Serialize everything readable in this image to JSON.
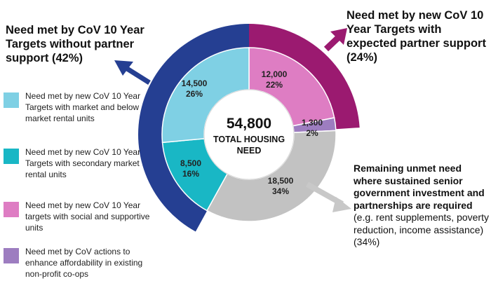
{
  "colors": {
    "outer_blue": "#253f92",
    "outer_magenta": "#9b1a70",
    "light_blue": "#7fd0e4",
    "teal": "#19b7c5",
    "pink": "#de7dc3",
    "purple": "#9d7dc0",
    "gray": "#c2c2c2",
    "gray_arrow": "#c8c8c8"
  },
  "callouts": {
    "left": "Need met by CoV 10 Year Targets without partner support (42%)",
    "top_right": "Need met by new CoV 10 Year Targets with expected partner support (24%)",
    "bottom_right_bold": "Remaining unmet need where sustained senior government investment and partnerships are required",
    "bottom_right_normal": " (e.g. rent supplements, poverty reduction, income assistance) (34%)"
  },
  "legend": [
    {
      "label": "Need met by new CoV 10 Year Targets with market and below market rental units",
      "color": "#7fd0e4"
    },
    {
      "label": "Need met by new CoV 10 Year Targets with secondary market rental units",
      "color": "#19b7c5"
    },
    {
      "label": "Need met by new CoV 10 Year targets with social and supportive units",
      "color": "#de7dc3"
    },
    {
      "label": "Need met by CoV actions to enhance affordability in existing non-profit co-ops",
      "color": "#9d7dc0"
    }
  ],
  "chart_data": {
    "type": "pie",
    "center_total": "54,800",
    "center_label_line1": "TOTAL HOUSING",
    "center_label_line2": "NEED",
    "inner_ring": [
      {
        "value": 12000,
        "value_label": "12,000",
        "percent_label": "22%",
        "color": "#de7dc3"
      },
      {
        "value": 1300,
        "value_label": "1,300",
        "percent_label": "2%",
        "color": "#9d7dc0"
      },
      {
        "value": 18500,
        "value_label": "18,500",
        "percent_label": "34%",
        "color": "#c2c2c2"
      },
      {
        "value": 8500,
        "value_label": "8,500",
        "percent_label": "16%",
        "color": "#19b7c5"
      },
      {
        "value": 14500,
        "value_label": "14,500",
        "percent_label": "26%",
        "color": "#7fd0e4"
      }
    ],
    "outer_ring": [
      {
        "name": "Need met by new CoV 10 Year Targets with expected partner support",
        "percent": 24,
        "color": "#9b1a70"
      },
      {
        "name": "Need met by CoV 10 Year Targets without partner support",
        "percent": 42,
        "color": "#253f92"
      }
    ]
  }
}
